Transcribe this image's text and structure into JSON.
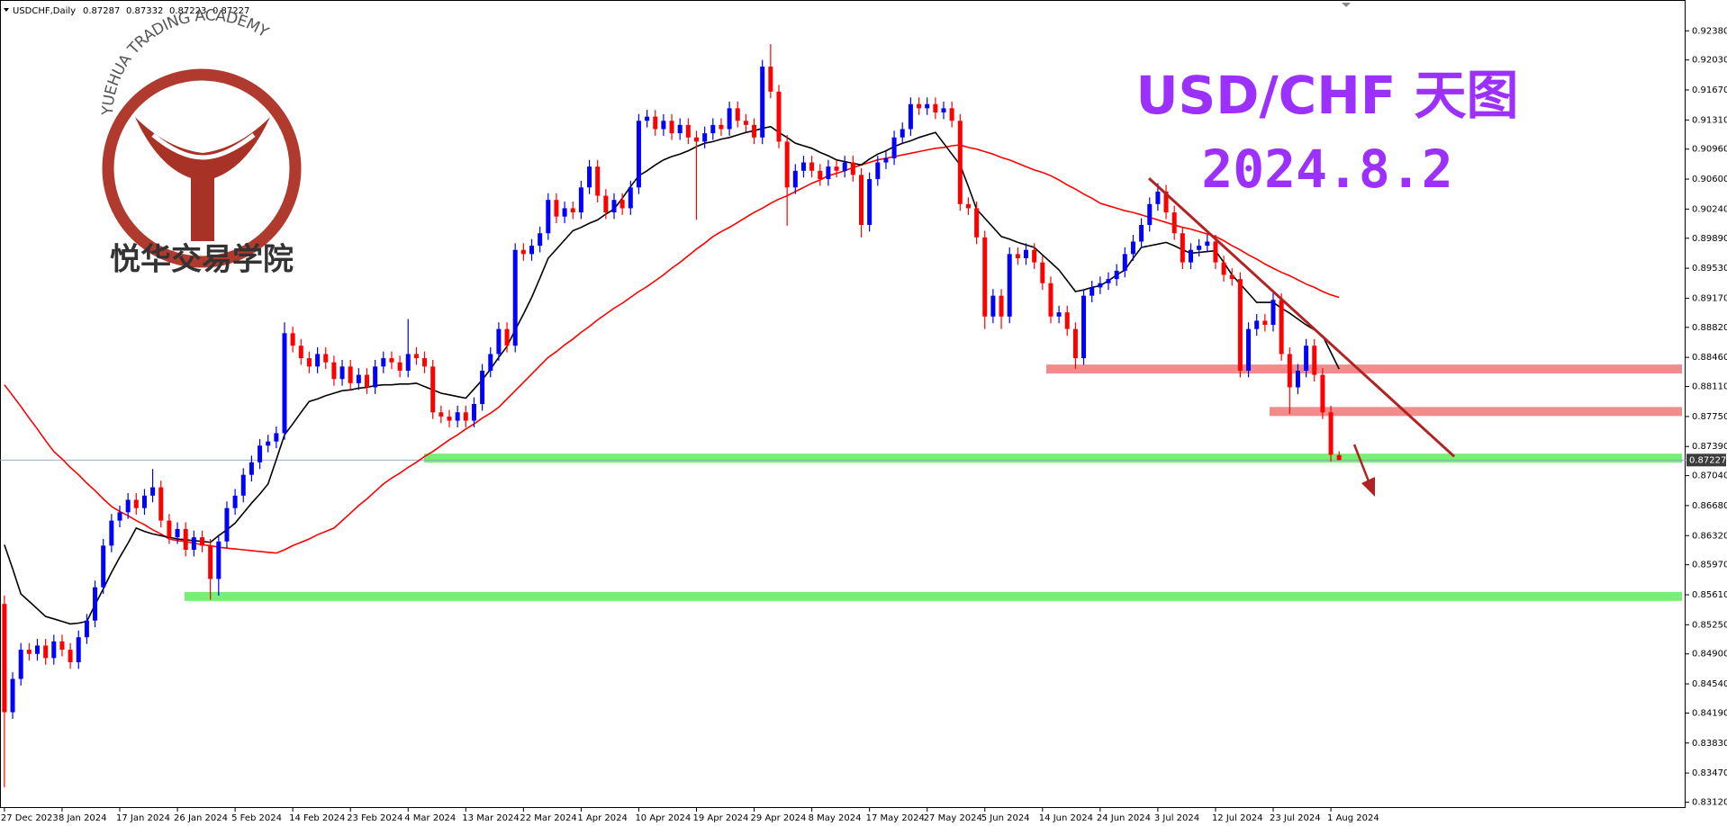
{
  "logo": {
    "text": "YUEHUA TRADING ACADEMY",
    "name_cn": "悦华交易学院"
  },
  "chart_data": {
    "type": "candlestick",
    "title": "USD/CHF 天图",
    "subtitle": "2024.8.2",
    "symbol": "USDCHF,Daily",
    "up_color": "#0000ff",
    "down_color": "#ff0000",
    "grid": false,
    "ylim": [
      0.8305,
      0.9275
    ],
    "yticks": [
      {
        "value": 0.9238,
        "label": "0.92380"
      },
      {
        "value": 0.9203,
        "label": "0.92030"
      },
      {
        "value": 0.9167,
        "label": "0.91670"
      },
      {
        "value": 0.9131,
        "label": "0.91310"
      },
      {
        "value": 0.9096,
        "label": "0.90960"
      },
      {
        "value": 0.906,
        "label": "0.90600"
      },
      {
        "value": 0.9024,
        "label": "0.90240"
      },
      {
        "value": 0.8989,
        "label": "0.89890"
      },
      {
        "value": 0.8953,
        "label": "0.89530"
      },
      {
        "value": 0.8917,
        "label": "0.89170"
      },
      {
        "value": 0.8882,
        "label": "0.88820"
      },
      {
        "value": 0.8846,
        "label": "0.88460"
      },
      {
        "value": 0.8811,
        "label": "0.88110"
      },
      {
        "value": 0.8775,
        "label": "0.87750"
      },
      {
        "value": 0.8739,
        "label": "0.87390"
      },
      {
        "value": 0.8704,
        "label": "0.87040"
      },
      {
        "value": 0.8668,
        "label": "0.86680"
      },
      {
        "value": 0.8632,
        "label": "0.86320"
      },
      {
        "value": 0.8597,
        "label": "0.85970"
      },
      {
        "value": 0.8561,
        "label": "0.85610"
      },
      {
        "value": 0.8525,
        "label": "0.85250"
      },
      {
        "value": 0.849,
        "label": "0.84900"
      },
      {
        "value": 0.8454,
        "label": "0.84540"
      },
      {
        "value": 0.8419,
        "label": "0.84190"
      },
      {
        "value": 0.8383,
        "label": "0.83830"
      },
      {
        "value": 0.8347,
        "label": "0.83470"
      },
      {
        "value": 0.8312,
        "label": "0.83120"
      }
    ],
    "categories": [
      "27 Dec 2023",
      null,
      null,
      null,
      null,
      null,
      null,
      "8 Jan 2024",
      null,
      null,
      null,
      null,
      null,
      null,
      "17 Jan 2024",
      null,
      null,
      null,
      null,
      null,
      null,
      "26 Jan 2024",
      null,
      null,
      null,
      null,
      null,
      null,
      "5 Feb 2024",
      null,
      null,
      null,
      null,
      null,
      null,
      "14 Feb 2024",
      null,
      null,
      null,
      null,
      null,
      null,
      "23 Feb 2024",
      null,
      null,
      null,
      null,
      null,
      null,
      "4 Mar 2024",
      null,
      null,
      null,
      null,
      null,
      null,
      "13 Mar 2024",
      null,
      null,
      null,
      null,
      null,
      null,
      "22 Mar 2024",
      null,
      null,
      null,
      null,
      null,
      null,
      "1 Apr 2024",
      null,
      null,
      null,
      null,
      null,
      null,
      "10 Apr 2024",
      null,
      null,
      null,
      null,
      null,
      null,
      "19 Apr 2024",
      null,
      null,
      null,
      null,
      null,
      null,
      "29 Apr 2024",
      null,
      null,
      null,
      null,
      null,
      null,
      "8 May 2024",
      null,
      null,
      null,
      null,
      null,
      null,
      "17 May 2024",
      null,
      null,
      null,
      null,
      null,
      null,
      "27 May 2024",
      null,
      null,
      null,
      null,
      null,
      null,
      "5 Jun 2024",
      null,
      null,
      null,
      null,
      null,
      null,
      "14 Jun 2024",
      null,
      null,
      null,
      null,
      null,
      null,
      "24 Jun 2024",
      null,
      null,
      null,
      null,
      null,
      null,
      "3 Jul 2024",
      null,
      null,
      null,
      null,
      null,
      null,
      "12 Jul 2024",
      null,
      null,
      null,
      null,
      null,
      null,
      "23 Jul 2024",
      null,
      null,
      null,
      null,
      null,
      null,
      "1 Aug 2024",
      null
    ],
    "open": [
      0.855,
      0.842,
      0.846,
      0.8495,
      0.849,
      0.85,
      0.8485,
      0.8505,
      0.8495,
      0.848,
      0.851,
      0.853,
      0.857,
      0.862,
      0.865,
      0.866,
      0.8675,
      0.8665,
      0.868,
      0.869,
      0.865,
      0.863,
      0.864,
      0.8615,
      0.863,
      0.862,
      0.858,
      0.8625,
      0.8665,
      0.868,
      0.8705,
      0.872,
      0.874,
      0.8745,
      0.8755,
      0.8875,
      0.886,
      0.8845,
      0.8835,
      0.885,
      0.884,
      0.882,
      0.8835,
      0.8815,
      0.8825,
      0.881,
      0.8835,
      0.8845,
      0.884,
      0.883,
      0.885,
      0.8845,
      0.8835,
      0.878,
      0.8775,
      0.877,
      0.878,
      0.877,
      0.879,
      0.883,
      0.885,
      0.888,
      0.886,
      0.8975,
      0.897,
      0.898,
      0.8995,
      0.9035,
      0.9015,
      0.9025,
      0.902,
      0.905,
      0.9075,
      0.904,
      0.902,
      0.9035,
      0.9025,
      0.905,
      0.913,
      0.9135,
      0.912,
      0.913,
      0.9115,
      0.9125,
      0.911,
      0.9105,
      0.9115,
      0.9125,
      0.912,
      0.9145,
      0.913,
      0.9125,
      0.911,
      0.9195,
      0.9165,
      0.9105,
      0.905,
      0.907,
      0.908,
      0.907,
      0.906,
      0.9075,
      0.907,
      0.908,
      0.9065,
      0.9005,
      0.906,
      0.908,
      0.9085,
      0.911,
      0.912,
      0.915,
      0.9145,
      0.915,
      0.914,
      0.9145,
      0.913,
      0.903,
      0.9025,
      0.899,
      0.8895,
      0.892,
      0.8895,
      0.897,
      0.8965,
      0.8975,
      0.896,
      0.8935,
      0.8895,
      0.89,
      0.888,
      0.8845,
      0.892,
      0.893,
      0.8935,
      0.894,
      0.895,
      0.897,
      0.8985,
      0.9005,
      0.903,
      0.9045,
      0.902,
      0.8995,
      0.896,
      0.8975,
      0.898,
      0.8985,
      0.896,
      0.8945,
      0.894,
      0.883,
      0.888,
      0.889,
      0.8885,
      0.8915,
      0.885,
      0.881,
      0.883,
      0.886,
      0.8825,
      0.878,
      0.87287
    ],
    "high": [
      0.856,
      0.8468,
      0.8503,
      0.8503,
      0.8508,
      0.8508,
      0.8513,
      0.8513,
      0.8503,
      0.8518,
      0.8538,
      0.8578,
      0.8628,
      0.8658,
      0.8668,
      0.8683,
      0.8683,
      0.8688,
      0.8712,
      0.8698,
      0.8658,
      0.8648,
      0.8648,
      0.8638,
      0.8638,
      0.8628,
      0.8633,
      0.8673,
      0.8688,
      0.8713,
      0.8728,
      0.8748,
      0.8753,
      0.8763,
      0.8888,
      0.8883,
      0.8868,
      0.8853,
      0.8858,
      0.8858,
      0.8848,
      0.8843,
      0.8843,
      0.8833,
      0.8833,
      0.8843,
      0.8853,
      0.8853,
      0.8848,
      0.8892,
      0.8858,
      0.8853,
      0.8843,
      0.8788,
      0.8783,
      0.8788,
      0.8788,
      0.8798,
      0.8838,
      0.8858,
      0.8888,
      0.8888,
      0.8983,
      0.8983,
      0.8988,
      0.9003,
      0.9043,
      0.9043,
      0.9033,
      0.9033,
      0.9058,
      0.9083,
      0.9083,
      0.9048,
      0.9043,
      0.9043,
      0.9058,
      0.9138,
      0.9143,
      0.9143,
      0.9138,
      0.9138,
      0.9133,
      0.9133,
      0.9118,
      0.9123,
      0.9133,
      0.9133,
      0.9153,
      0.9153,
      0.9138,
      0.9133,
      0.9203,
      0.9222,
      0.9173,
      0.9113,
      0.9078,
      0.9088,
      0.9088,
      0.9078,
      0.9083,
      0.9083,
      0.9088,
      0.9088,
      0.9073,
      0.9068,
      0.9088,
      0.9093,
      0.9118,
      0.9128,
      0.9158,
      0.9158,
      0.9158,
      0.9158,
      0.9153,
      0.9153,
      0.9138,
      0.9038,
      0.9033,
      0.8998,
      0.8928,
      0.8928,
      0.8978,
      0.8978,
      0.8983,
      0.8983,
      0.8968,
      0.8943,
      0.8908,
      0.8908,
      0.8888,
      0.8928,
      0.8938,
      0.8943,
      0.8948,
      0.8958,
      0.8978,
      0.8993,
      0.9013,
      0.9038,
      0.9055,
      0.9053,
      0.9028,
      0.9003,
      0.8983,
      0.8988,
      0.8993,
      0.8993,
      0.8968,
      0.8953,
      0.8948,
      0.8888,
      0.8898,
      0.8898,
      0.8923,
      0.8923,
      0.8858,
      0.8838,
      0.8868,
      0.8868,
      0.8833,
      0.8788,
      0.87332
    ],
    "low": [
      0.833,
      0.8412,
      0.8452,
      0.8482,
      0.8482,
      0.8477,
      0.8477,
      0.8487,
      0.8472,
      0.8472,
      0.8502,
      0.8522,
      0.8562,
      0.8612,
      0.8642,
      0.8652,
      0.8657,
      0.8657,
      0.8672,
      0.8642,
      0.8622,
      0.8622,
      0.8607,
      0.8607,
      0.8612,
      0.8555,
      0.856,
      0.8617,
      0.8657,
      0.8672,
      0.8697,
      0.8712,
      0.8732,
      0.8737,
      0.8747,
      0.8852,
      0.8837,
      0.8827,
      0.8827,
      0.8832,
      0.8812,
      0.8812,
      0.8807,
      0.8807,
      0.8802,
      0.8802,
      0.8827,
      0.8832,
      0.8822,
      0.8822,
      0.8837,
      0.8827,
      0.8772,
      0.8767,
      0.8762,
      0.8762,
      0.8762,
      0.8762,
      0.8782,
      0.8822,
      0.8842,
      0.8852,
      0.8852,
      0.8962,
      0.8962,
      0.8972,
      0.8987,
      0.9007,
      0.9007,
      0.9012,
      0.9012,
      0.9042,
      0.9032,
      0.9012,
      0.9012,
      0.9017,
      0.9017,
      0.9042,
      0.9122,
      0.9112,
      0.9112,
      0.9107,
      0.9107,
      0.9102,
      0.9011,
      0.9097,
      0.9107,
      0.9112,
      0.9112,
      0.9122,
      0.9117,
      0.9102,
      0.9102,
      0.9157,
      0.9097,
      0.9004,
      0.9042,
      0.9062,
      0.9062,
      0.9052,
      0.9052,
      0.9062,
      0.9062,
      0.9057,
      0.899,
      0.8997,
      0.9052,
      0.9072,
      0.9077,
      0.9102,
      0.9112,
      0.9137,
      0.9137,
      0.9132,
      0.9132,
      0.9122,
      0.9022,
      0.9017,
      0.8982,
      0.888,
      0.8887,
      0.888,
      0.8887,
      0.8957,
      0.8957,
      0.8952,
      0.8927,
      0.8887,
      0.8887,
      0.8872,
      0.8832,
      0.8837,
      0.8912,
      0.8922,
      0.8927,
      0.8932,
      0.8942,
      0.8962,
      0.8977,
      0.8997,
      0.9022,
      0.9012,
      0.8987,
      0.8952,
      0.8952,
      0.8967,
      0.8972,
      0.8952,
      0.8937,
      0.8932,
      0.8822,
      0.8822,
      0.8872,
      0.8877,
      0.8877,
      0.8842,
      0.8778,
      0.8802,
      0.8822,
      0.8817,
      0.8772,
      0.8721,
      0.87223
    ],
    "close": [
      0.842,
      0.846,
      0.8495,
      0.849,
      0.85,
      0.8485,
      0.8505,
      0.8495,
      0.848,
      0.851,
      0.853,
      0.857,
      0.862,
      0.865,
      0.866,
      0.8675,
      0.8665,
      0.868,
      0.869,
      0.865,
      0.863,
      0.864,
      0.8615,
      0.863,
      0.862,
      0.858,
      0.8625,
      0.8665,
      0.868,
      0.8705,
      0.872,
      0.874,
      0.8745,
      0.8755,
      0.8875,
      0.886,
      0.8845,
      0.8835,
      0.885,
      0.884,
      0.882,
      0.8835,
      0.8815,
      0.8825,
      0.881,
      0.8835,
      0.8845,
      0.884,
      0.883,
      0.885,
      0.8845,
      0.8835,
      0.878,
      0.8775,
      0.877,
      0.878,
      0.877,
      0.879,
      0.883,
      0.885,
      0.888,
      0.886,
      0.8975,
      0.897,
      0.898,
      0.8995,
      0.9035,
      0.9015,
      0.9025,
      0.902,
      0.905,
      0.9075,
      0.904,
      0.902,
      0.9035,
      0.9025,
      0.905,
      0.913,
      0.9135,
      0.912,
      0.913,
      0.9115,
      0.9125,
      0.911,
      0.9105,
      0.9115,
      0.9125,
      0.912,
      0.9145,
      0.913,
      0.9125,
      0.911,
      0.9195,
      0.9165,
      0.9105,
      0.905,
      0.907,
      0.908,
      0.907,
      0.906,
      0.9075,
      0.907,
      0.908,
      0.9065,
      0.9005,
      0.906,
      0.908,
      0.9085,
      0.911,
      0.912,
      0.915,
      0.9145,
      0.915,
      0.914,
      0.9145,
      0.913,
      0.903,
      0.9025,
      0.899,
      0.8895,
      0.892,
      0.8895,
      0.897,
      0.8965,
      0.8975,
      0.896,
      0.8935,
      0.8895,
      0.89,
      0.888,
      0.8845,
      0.892,
      0.893,
      0.8935,
      0.894,
      0.895,
      0.897,
      0.8985,
      0.9005,
      0.903,
      0.9045,
      0.902,
      0.8995,
      0.896,
      0.8975,
      0.898,
      0.8985,
      0.896,
      0.8945,
      0.894,
      0.883,
      0.888,
      0.889,
      0.8885,
      0.8915,
      0.885,
      0.881,
      0.883,
      0.886,
      0.8825,
      0.878,
      0.8729,
      0.87227
    ],
    "moving_averages": [
      {
        "color": "#ff0000",
        "values": [
          0.8813,
          0.88,
          0.8787,
          0.8773,
          0.876,
          0.8746,
          0.8733,
          0.8724,
          0.8714,
          0.8705,
          0.8695,
          0.8686,
          0.8676,
          0.8667,
          0.8661,
          0.8656,
          0.865,
          0.8645,
          0.8639,
          0.8634,
          0.8628,
          0.8626,
          0.8625,
          0.8623,
          0.8621,
          0.862,
          0.8618,
          0.8617,
          0.8616,
          0.8615,
          0.8614,
          0.8613,
          0.8612,
          0.8611,
          0.8615,
          0.862,
          0.8624,
          0.8628,
          0.8633,
          0.8637,
          0.8641,
          0.865,
          0.8659,
          0.8668,
          0.8676,
          0.8685,
          0.8694,
          0.8701,
          0.8707,
          0.8714,
          0.872,
          0.8727,
          0.8733,
          0.874,
          0.8747,
          0.8753,
          0.876,
          0.8766,
          0.8773,
          0.8779,
          0.8786,
          0.8796,
          0.8806,
          0.8816,
          0.8826,
          0.8836,
          0.8846,
          0.8853,
          0.8861,
          0.8868,
          0.8876,
          0.8883,
          0.8891,
          0.8898,
          0.8905,
          0.8911,
          0.8918,
          0.8925,
          0.8931,
          0.8938,
          0.8945,
          0.8953,
          0.896,
          0.8968,
          0.8976,
          0.8983,
          0.8991,
          0.8997,
          0.9002,
          0.9008,
          0.9014,
          0.902,
          0.9025,
          0.9031,
          0.9036,
          0.904,
          0.9045,
          0.905,
          0.9055,
          0.9059,
          0.9064,
          0.9067,
          0.907,
          0.9074,
          0.9077,
          0.908,
          0.9083,
          0.9085,
          0.9087,
          0.9089,
          0.9091,
          0.9093,
          0.9095,
          0.9097,
          0.9098,
          0.91,
          0.9101,
          0.9098,
          0.9096,
          0.9093,
          0.909,
          0.9086,
          0.9083,
          0.9079,
          0.9075,
          0.9071,
          0.9068,
          0.9064,
          0.9059,
          0.9053,
          0.9048,
          0.9042,
          0.9037,
          0.9031,
          0.9028,
          0.9025,
          0.9022,
          0.902,
          0.9017,
          0.9014,
          0.9011,
          0.9008,
          0.9005,
          0.9002,
          0.9,
          0.8997,
          0.8994,
          0.8991,
          0.8986,
          0.898,
          0.8975,
          0.8969,
          0.8964,
          0.8958,
          0.8953,
          0.8948,
          0.8944,
          0.8939,
          0.8934,
          0.893,
          0.8925,
          0.8921,
          0.8918
        ]
      },
      {
        "color": "#000000",
        "values": [
          0.8621,
          0.8592,
          0.8562,
          0.8553,
          0.8544,
          0.8535,
          0.8532,
          0.8529,
          0.8526,
          0.8527,
          0.8529,
          0.8549,
          0.8568,
          0.8588,
          0.8606,
          0.8623,
          0.8641,
          0.8637,
          0.8634,
          0.8632,
          0.863,
          0.8628,
          0.8627,
          0.8626,
          0.8625,
          0.8624,
          0.8632,
          0.8639,
          0.8647,
          0.8659,
          0.8671,
          0.8682,
          0.8694,
          0.8723,
          0.8753,
          0.8766,
          0.878,
          0.8793,
          0.8796,
          0.88,
          0.8803,
          0.8806,
          0.8807,
          0.8809,
          0.881,
          0.8812,
          0.8813,
          0.8813,
          0.8814,
          0.8814,
          0.8815,
          0.8811,
          0.8807,
          0.8803,
          0.8801,
          0.8799,
          0.8797,
          0.8808,
          0.8819,
          0.8832,
          0.8846,
          0.8859,
          0.8879,
          0.8898,
          0.8918,
          0.8941,
          0.8965,
          0.8976,
          0.8987,
          0.8998,
          0.9002,
          0.9007,
          0.9011,
          0.9018,
          0.9024,
          0.9037,
          0.9051,
          0.9064,
          0.907,
          0.9077,
          0.9083,
          0.9087,
          0.909,
          0.9094,
          0.9099,
          0.9103,
          0.9105,
          0.9108,
          0.911,
          0.9113,
          0.9116,
          0.9118,
          0.9121,
          0.9123,
          0.9116,
          0.911,
          0.9103,
          0.91,
          0.9097,
          0.9092,
          0.9088,
          0.9083,
          0.9081,
          0.9079,
          0.9077,
          0.9084,
          0.909,
          0.9094,
          0.9099,
          0.9103,
          0.9106,
          0.911,
          0.9113,
          0.9116,
          0.9103,
          0.909,
          0.9077,
          0.9051,
          0.9024,
          0.9013,
          0.9002,
          0.8991,
          0.8988,
          0.8984,
          0.8981,
          0.8978,
          0.8969,
          0.896,
          0.8951,
          0.8938,
          0.8925,
          0.8927,
          0.893,
          0.8932,
          0.8938,
          0.8945,
          0.8951,
          0.8965,
          0.8978,
          0.898,
          0.8982,
          0.8984,
          0.898,
          0.8975,
          0.8971,
          0.8972,
          0.8973,
          0.8974,
          0.896,
          0.8945,
          0.8934,
          0.8923,
          0.8912,
          0.8912,
          0.8912,
          0.8905,
          0.8899,
          0.8892,
          0.8885,
          0.8879,
          0.8872,
          0.8852,
          0.8832
        ]
      }
    ],
    "levels": [
      {
        "value": 0.8832,
        "color": "#f08080"
      },
      {
        "value": 0.8781,
        "color": "#f08080"
      },
      {
        "value": 0.8725,
        "color": "#66ee66"
      },
      {
        "value": 0.8559,
        "color": "#66ee66"
      }
    ],
    "trendline": {
      "values": [
        0.9061,
        0.8727
      ],
      "color": "#b22222"
    }
  }
}
